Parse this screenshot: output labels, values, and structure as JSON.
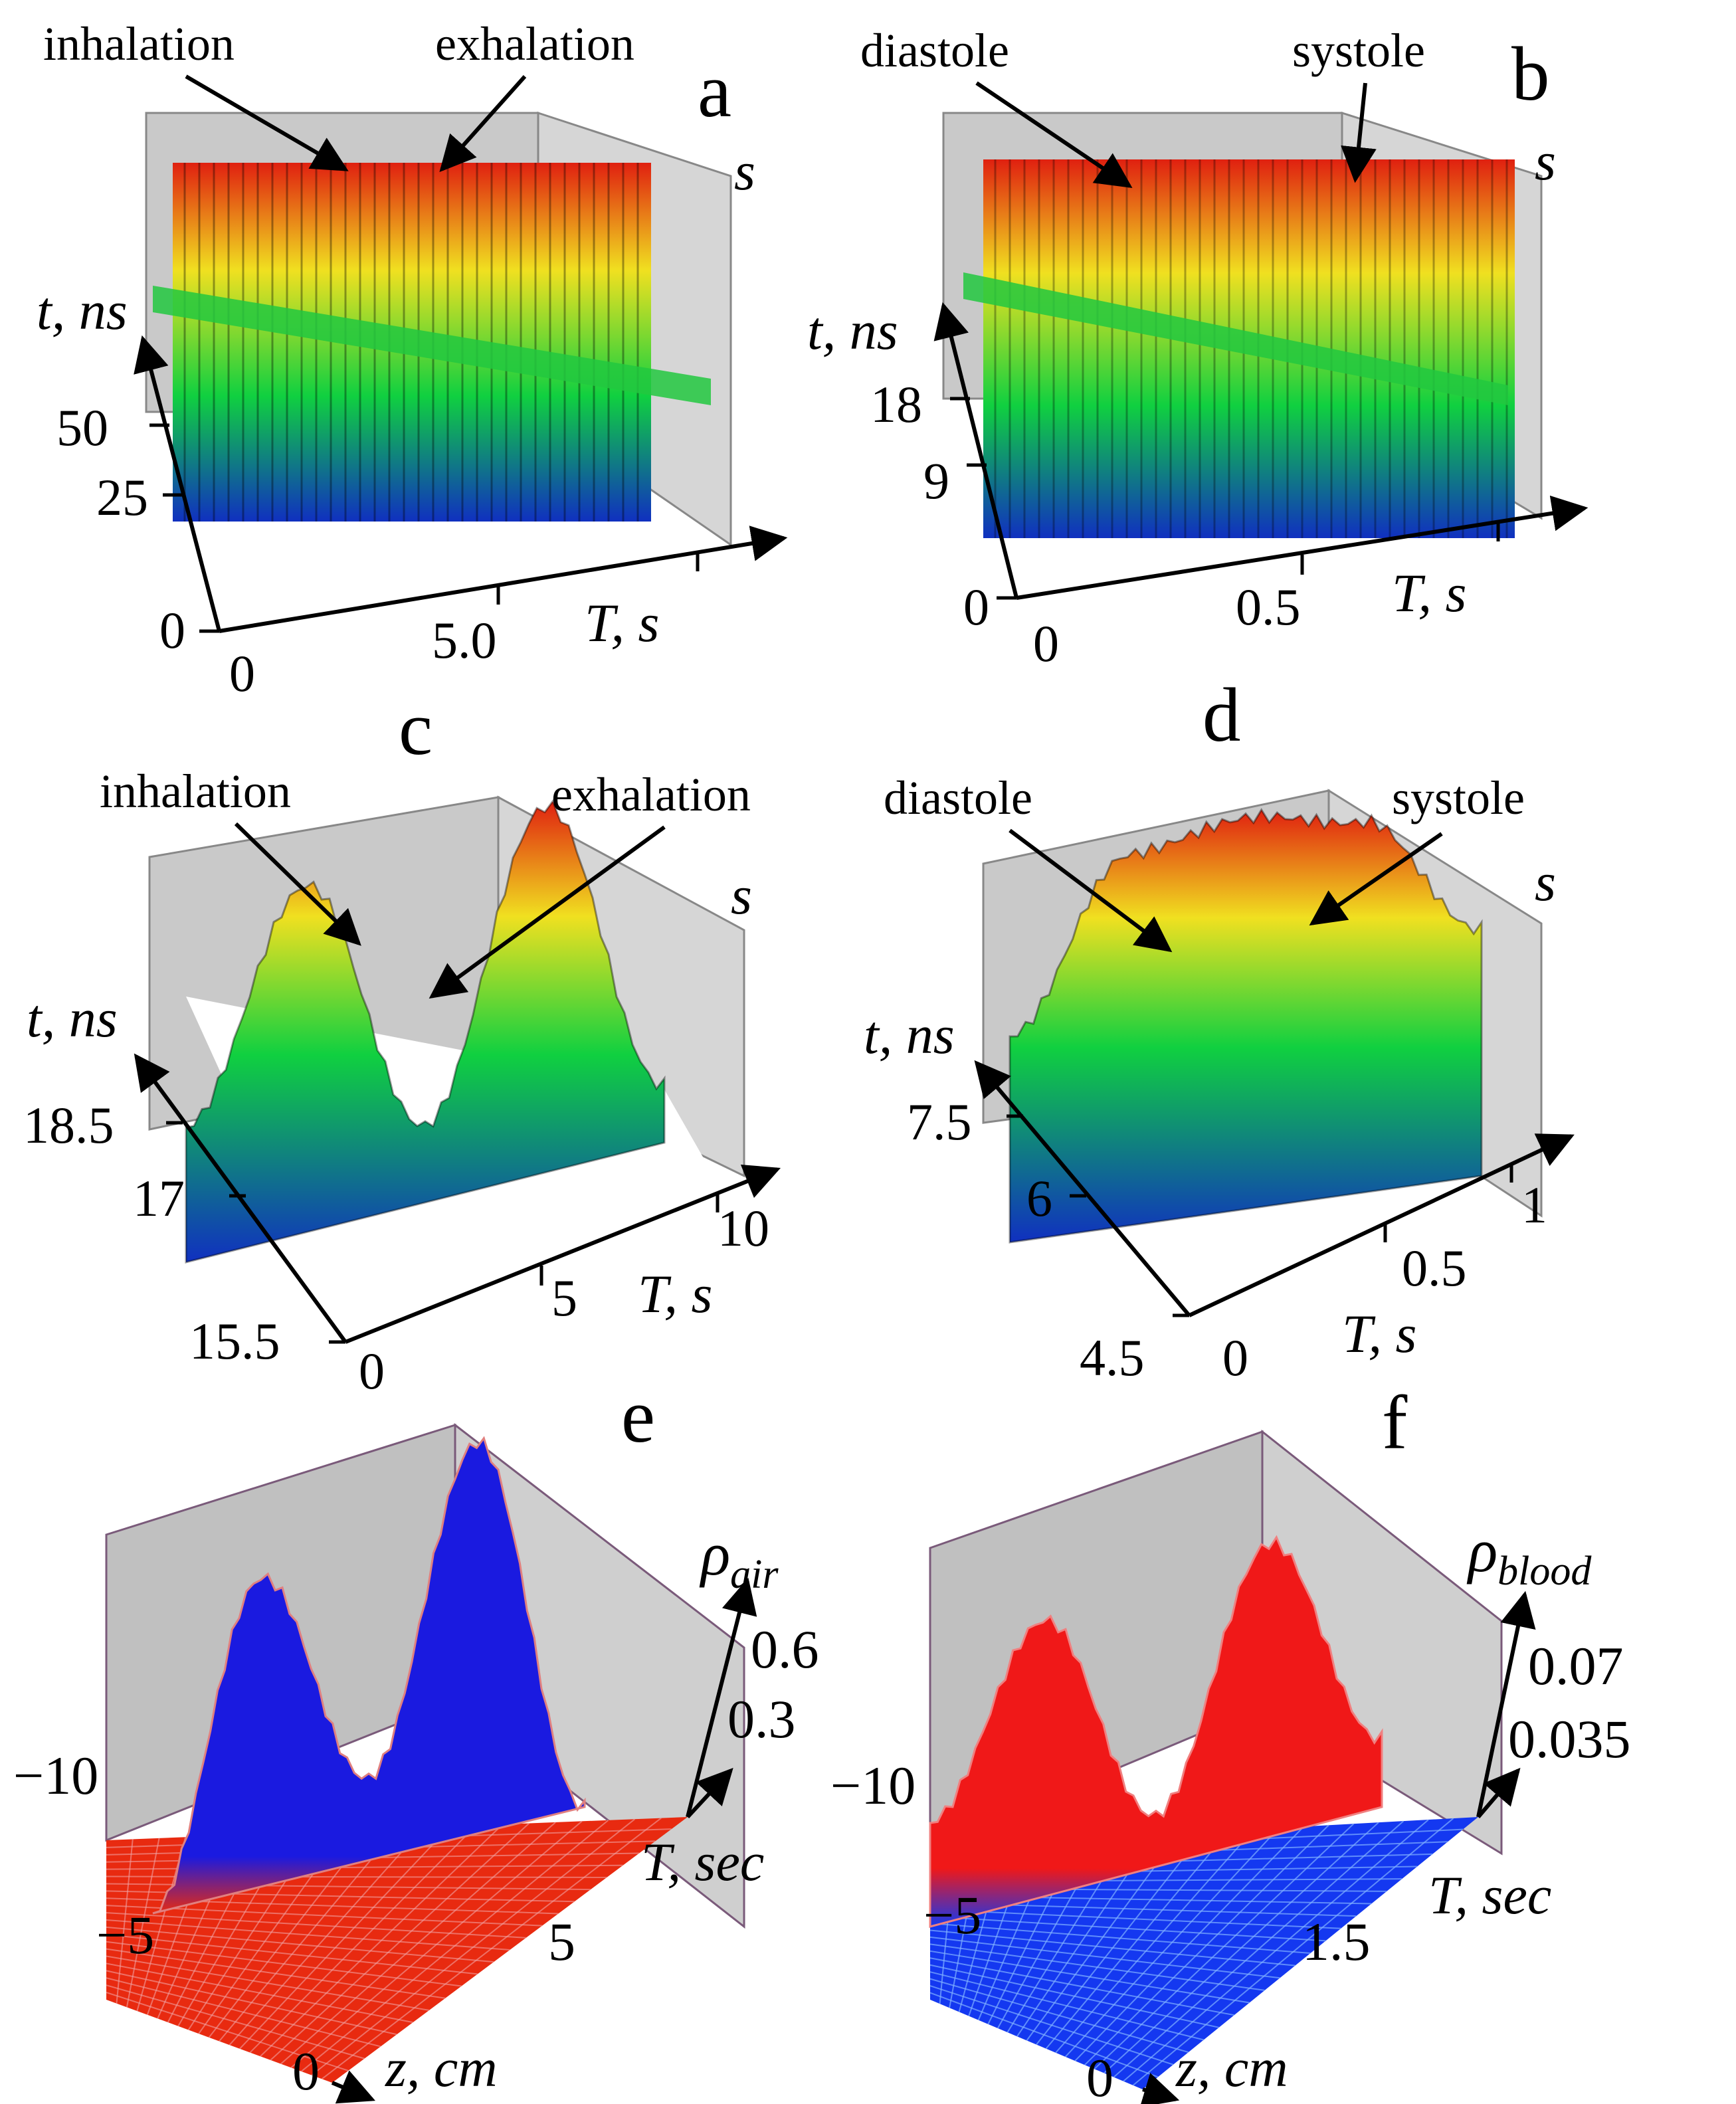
{
  "chart_data": [
    {
      "type": "surface",
      "panel": "a",
      "annotations": [
        "inhalation",
        "exhalation"
      ],
      "t_label": {
        "main": "t",
        "sep": ", ",
        "unit": "ns"
      },
      "T_label": {
        "main": "T",
        "sep": ", ",
        "unit": "s"
      },
      "s_label": "s",
      "t_ticks": [
        "0",
        "25",
        "50"
      ],
      "T_ticks": [
        "0",
        "5.0"
      ],
      "t_range": [
        0,
        75
      ],
      "T_range": [
        0,
        10
      ],
      "colormap": [
        "#1030c0",
        "#10d040",
        "#f0e020",
        "#e02010"
      ],
      "profile": [
        0.6,
        0.6,
        0.6,
        0.6
      ]
    },
    {
      "type": "surface",
      "panel": "b",
      "annotations": [
        "diastole",
        "systole"
      ],
      "t_label": {
        "main": "t",
        "sep": ", ",
        "unit": "ns"
      },
      "T_label": {
        "main": "T",
        "sep": ", ",
        "unit": "s"
      },
      "s_label": "s",
      "t_ticks": [
        "0",
        "9",
        "18"
      ],
      "T_ticks": [
        "0",
        "0.5"
      ],
      "t_range": [
        0,
        27
      ],
      "T_range": [
        0,
        1
      ],
      "colormap": [
        "#1030c0",
        "#10d040",
        "#f0e020",
        "#e02010"
      ],
      "profile": [
        0.62,
        0.62,
        0.62,
        0.62
      ]
    },
    {
      "type": "surface",
      "panel": "c",
      "annotations": [
        "inhalation",
        "exhalation"
      ],
      "t_label": {
        "main": "t",
        "sep": ", ",
        "unit": "ns"
      },
      "T_label": {
        "main": "T",
        "sep": ", ",
        "unit": "s"
      },
      "s_label": "s",
      "t_ticks": [
        "15.5",
        "17",
        "18.5"
      ],
      "T_ticks": [
        "0",
        "5",
        "10"
      ],
      "t_range": [
        15.5,
        20
      ],
      "T_range": [
        0,
        10
      ],
      "colormap": [
        "#1030c0",
        "#10d040",
        "#f0e020",
        "#e02010"
      ],
      "profile": [
        0.35,
        0.9,
        0.2,
        0.95,
        0.15
      ]
    },
    {
      "type": "surface",
      "panel": "d",
      "annotations": [
        "diastole",
        "systole"
      ],
      "t_label": {
        "main": "t",
        "sep": ", ",
        "unit": "ns"
      },
      "T_label": {
        "main": "T",
        "sep": ", ",
        "unit": "s"
      },
      "s_label": "s",
      "t_ticks": [
        "4.5",
        "6",
        "7.5"
      ],
      "T_ticks": [
        "0",
        "0.5",
        "1"
      ],
      "t_range": [
        4.5,
        9
      ],
      "T_range": [
        0,
        1
      ],
      "colormap": [
        "#1030c0",
        "#10d040",
        "#f0e020",
        "#e02010"
      ],
      "profile": [
        0.5,
        0.9,
        0.95,
        0.9,
        0.6
      ]
    },
    {
      "type": "surface",
      "panel": "e",
      "z_label": {
        "main": "ρ",
        "sub": "air"
      },
      "T_label": {
        "main": "T",
        "sep": ", ",
        "unit": "sec"
      },
      "x_label": {
        "main": "z",
        "sep": ", ",
        "unit": "cm"
      },
      "z_ticks": [
        "0.3",
        "0.6"
      ],
      "T_ticks": [
        "5"
      ],
      "x_ticks": [
        "0",
        "−5",
        "−10"
      ],
      "base_color": "#e82a10",
      "peak_color": "#1a1ae0",
      "profile": [
        0.0,
        0.75,
        0.2,
        0.95,
        0.0
      ]
    },
    {
      "type": "surface",
      "panel": "f",
      "z_label": {
        "main": "ρ",
        "sub": "blood"
      },
      "T_label": {
        "main": "T",
        "sep": ", ",
        "unit": "sec"
      },
      "x_label": {
        "main": "z",
        "sep": ", ",
        "unit": "cm"
      },
      "z_ticks": [
        "0.035",
        "0.07"
      ],
      "T_ticks": [
        "1.5"
      ],
      "x_ticks": [
        "0",
        "−5",
        "−10"
      ],
      "base_color": "#1438f0",
      "peak_color": "#f01818",
      "profile": [
        0.3,
        0.8,
        0.15,
        0.85,
        0.2
      ]
    }
  ]
}
